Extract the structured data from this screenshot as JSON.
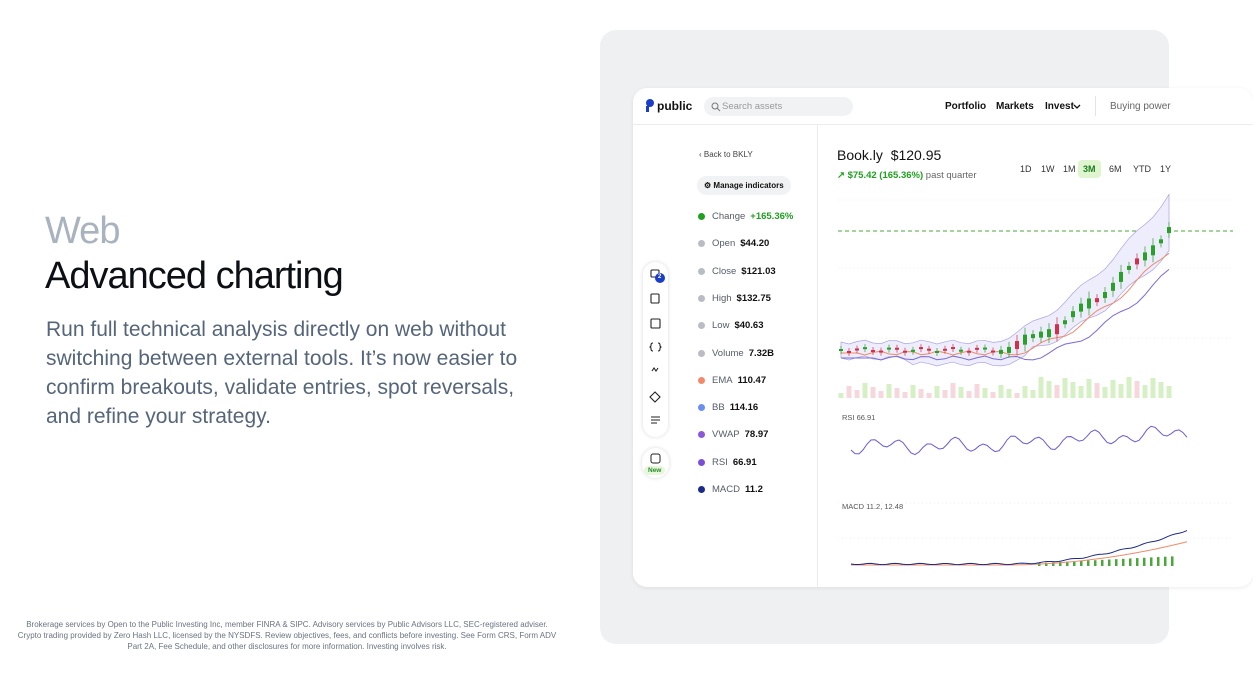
{
  "headline": {
    "eyebrow": "Web",
    "title": "Advanced charting",
    "body": [
      "Run full technical analysis directly on web without",
      "switching between external tools. It’s now easier to",
      "confirm breakouts, validate entries, spot reversals,",
      "and refine your strategy."
    ]
  },
  "disclaimer": [
    "Brokerage services by Open to the Public Investing Inc, member FINRA & SIPC. Advisory services by Public Advisors LLC, SEC-registered adviser.",
    "Crypto trading provided by Zero Hash LLC, licensed by the NYSDFS. Review objectives, fees, and conflicts before investing. See Form CRS, Form ADV",
    "Part 2A, Fee Schedule, and other disclosures for more information. Investing involves risk."
  ],
  "app": {
    "logo": "public",
    "search_placeholder": "Search assets",
    "nav": [
      "Portfolio",
      "Markets",
      "Invest"
    ],
    "buying_power": "Buying power",
    "sidebar_badge": "2",
    "new_label": "New",
    "back": "Back to BKLY",
    "manage": "Manage indicators",
    "indicators": [
      {
        "name": "Change",
        "value": "+165.36%",
        "color": "#1fa01f",
        "value_color": "#1fa01f"
      },
      {
        "name": "Open",
        "value": "$44.20",
        "color": "#b9bdc3"
      },
      {
        "name": "Close",
        "value": "$121.03",
        "color": "#b9bdc3"
      },
      {
        "name": "High",
        "value": "$132.75",
        "color": "#b9bdc3"
      },
      {
        "name": "Low",
        "value": "$40.63",
        "color": "#b9bdc3"
      },
      {
        "name": "Volume",
        "value": "7.32B",
        "color": "#b9bdc3"
      },
      {
        "name": "EMA",
        "value": "110.47",
        "color": "#f08a6a"
      },
      {
        "name": "BB",
        "value": "114.16",
        "color": "#6a8ff0"
      },
      {
        "name": "VWAP",
        "value": "78.97",
        "color": "#8a5ad6"
      },
      {
        "name": "RSI",
        "value": "66.91",
        "color": "#7a4fd6"
      },
      {
        "name": "MACD",
        "value": "11.2",
        "color": "#1a2a8a"
      }
    ],
    "stock": {
      "name": "Book.ly",
      "price": "$120.95",
      "change": "$75.42 (165.36%)",
      "period": "past quarter"
    },
    "ranges": [
      "1D",
      "1W",
      "1M",
      "3M",
      "6M",
      "YTD",
      "1Y"
    ],
    "selected_range_index": 3,
    "rsi_label": "RSI 66.91",
    "macd_label": "MACD 11.2, 12.48"
  }
}
